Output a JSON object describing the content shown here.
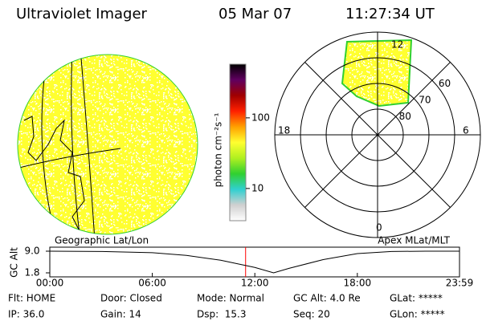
{
  "header": {
    "instrument": "Ultraviolet Imager",
    "date": "05 Mar 07",
    "time": "11:27:34 UT"
  },
  "colorbar": {
    "label": "photon cm⁻²s⁻¹",
    "scale": "log",
    "lim": [
      3.5,
      575
    ],
    "ticks": [
      10,
      100
    ],
    "colors": [
      "#ffffff",
      "#d0d0d0",
      "#30d0d0",
      "#30d030",
      "#b0f020",
      "#ffff30",
      "#ffa000",
      "#ff2000",
      "#a00000",
      "#600060",
      "#000000"
    ]
  },
  "left_panel": {
    "label": "Geographic Lat/Lon"
  },
  "right_panel": {
    "label": "Apex MLat/MLT",
    "mlt_labels": [
      "12",
      "18",
      "6",
      "0"
    ],
    "lat_rings": [
      60,
      70,
      80
    ]
  },
  "altitude": {
    "ylabel": "GC Alt",
    "ylim": [
      1.8,
      9.0
    ],
    "yticks": [
      {
        "value": 9.0,
        "label": "9.0"
      },
      {
        "value": 1.8,
        "label": "1.8"
      }
    ],
    "xlim": [
      0,
      23.98
    ],
    "xticks": [
      {
        "value": 0,
        "label": "00:00"
      },
      {
        "value": 6,
        "label": "06:00"
      },
      {
        "value": 12,
        "label": "12:00"
      },
      {
        "value": 18,
        "label": "18:00"
      },
      {
        "value": 23.98,
        "label": "23:59"
      }
    ],
    "x": [
      0,
      3,
      6,
      8,
      10,
      12,
      13.1,
      14,
      16,
      18,
      20,
      22,
      23.98
    ],
    "values": [
      9.0,
      8.9,
      8.5,
      7.6,
      6.0,
      3.6,
      1.8,
      3.3,
      6.2,
      8.2,
      8.9,
      9.0,
      9.0
    ],
    "current_time": 11.46,
    "color": "#000000",
    "marker_color": "#ff0000"
  },
  "footer": [
    [
      "Flt: HOME",
      "Door: Closed",
      "Mode: Normal",
      "GC Alt: 4.0 Re",
      "GLat: *****"
    ],
    [
      "IP: 36.0",
      "Gain: 14",
      "Dsp:  15.3",
      "Seq: 20",
      "GLon: *****"
    ]
  ]
}
